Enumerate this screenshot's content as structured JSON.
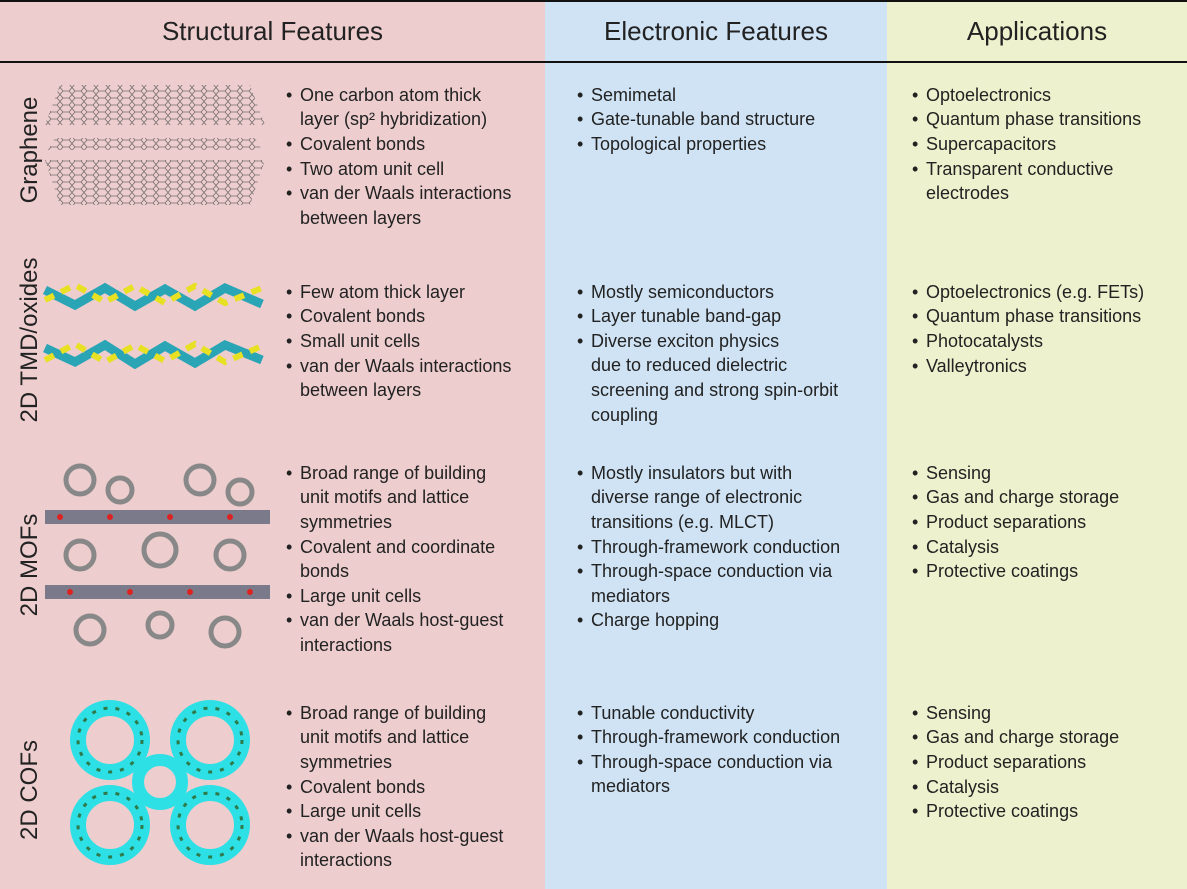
{
  "header": {
    "columns": [
      "Structural Features",
      "Electronic Features",
      "Applications"
    ]
  },
  "rows": [
    {
      "label": "Graphene",
      "structural": [
        [
          "One carbon atom thick",
          "layer (sp² hybridization)"
        ],
        [
          "Covalent bonds"
        ],
        [
          "Two atom unit cell"
        ],
        [
          "van der Waals interactions",
          "between layers"
        ]
      ],
      "electronic": [
        [
          "Semimetal"
        ],
        [
          "Gate-tunable band structure"
        ],
        [
          "Topological properties"
        ]
      ],
      "applications": [
        [
          "Optoelectronics"
        ],
        [
          "Quantum phase transitions"
        ],
        [
          "Supercapacitors"
        ],
        [
          "Transparent conductive",
          "electrodes"
        ]
      ]
    },
    {
      "label": "2D TMD/oxides",
      "structural": [
        [
          "Few atom thick layer"
        ],
        [
          "Covalent bonds"
        ],
        [
          "Small unit cells"
        ],
        [
          "van der Waals interactions",
          "between layers"
        ]
      ],
      "electronic": [
        [
          "Mostly semiconductors"
        ],
        [
          "Layer tunable band-gap"
        ],
        [
          "Diverse exciton physics",
          "due to reduced dielectric",
          "screening and strong spin-orbit",
          "coupling"
        ]
      ],
      "applications": [
        [
          "Optoelectronics (e.g. FETs)"
        ],
        [
          "Quantum phase transitions"
        ],
        [
          "Photocatalysts"
        ],
        [
          "Valleytronics"
        ]
      ]
    },
    {
      "label": "2D MOFs",
      "structural": [
        [
          "Broad range of building",
          "unit motifs and lattice",
          "symmetries"
        ],
        [
          "Covalent and coordinate",
          "bonds"
        ],
        [
          "Large unit cells"
        ],
        [
          "van der Waals host-guest",
          "interactions"
        ]
      ],
      "electronic": [
        [
          "Mostly insulators but with",
          "diverse range of electronic",
          "transitions (e.g. MLCT)"
        ],
        [
          "Through-framework conduction"
        ],
        [
          "Through-space conduction via",
          "mediators"
        ],
        [
          "Charge hopping"
        ]
      ],
      "applications": [
        [
          "Sensing"
        ],
        [
          "Gas and charge storage"
        ],
        [
          "Product separations"
        ],
        [
          "Catalysis"
        ],
        [
          "Protective coatings"
        ]
      ]
    },
    {
      "label": "2D COFs",
      "structural": [
        [
          "Broad range of building",
          "unit motifs and lattice",
          "symmetries"
        ],
        [
          "Covalent bonds"
        ],
        [
          "Large unit cells"
        ],
        [
          "van der Waals host-guest",
          "interactions"
        ]
      ],
      "electronic": [
        [
          "Tunable conductivity"
        ],
        [
          "Through-framework conduction"
        ],
        [
          "Through-space conduction via",
          "mediators"
        ]
      ],
      "applications": [
        [
          "Sensing"
        ],
        [
          "Gas and charge storage"
        ],
        [
          "Product separations"
        ],
        [
          "Catalysis"
        ],
        [
          "Protective coatings"
        ]
      ]
    }
  ]
}
